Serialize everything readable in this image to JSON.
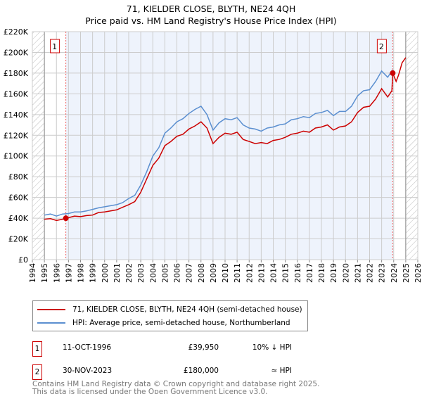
{
  "title_line1": "71, KIELDER CLOSE, BLYTH, NE24 4QH",
  "title_line2": "Price paid vs. HM Land Registry's House Price Index (HPI)",
  "colors": {
    "property": "#cc0000",
    "hpi": "#5b8fd0",
    "band": "#eef3fc",
    "grid": "#cccccc"
  },
  "chart_data": {
    "type": "line",
    "xlim": [
      1994,
      2026
    ],
    "ylim": [
      0,
      220000
    ],
    "yticks": [
      0,
      20000,
      40000,
      60000,
      80000,
      100000,
      120000,
      140000,
      160000,
      180000,
      200000,
      220000
    ],
    "ytick_labels": [
      "£0",
      "£20K",
      "£40K",
      "£60K",
      "£80K",
      "£100K",
      "£120K",
      "£140K",
      "£160K",
      "£180K",
      "£200K",
      "£220K"
    ],
    "xticks": [
      1994,
      1995,
      1996,
      1997,
      1998,
      1999,
      2000,
      2001,
      2002,
      2003,
      2004,
      2005,
      2006,
      2007,
      2008,
      2009,
      2010,
      2011,
      2012,
      2013,
      2014,
      2015,
      2016,
      2017,
      2018,
      2019,
      2020,
      2021,
      2022,
      2023,
      2024,
      2025,
      2026
    ],
    "xtick_labels": [
      "1994",
      "1995",
      "1996",
      "1997",
      "1998",
      "1999",
      "2000",
      "2001",
      "2002",
      "2003",
      "2004",
      "2005",
      "2006",
      "2007",
      "2008",
      "2009",
      "2010",
      "2011",
      "2012",
      "2013",
      "2014",
      "2015",
      "2016",
      "2017",
      "2018",
      "2019",
      "2020",
      "2021",
      "2022",
      "2023",
      "2024",
      "2025",
      "2026"
    ],
    "hatched_ranges": [
      [
        1994,
        1995
      ],
      [
        2025,
        2026
      ]
    ],
    "shaded_range": [
      1996.78,
      2023.92
    ],
    "series": [
      {
        "name": "71, KIELDER CLOSE, BLYTH, NE24 4QH (semi-detached house)",
        "color": "#cc0000",
        "x": [
          1995,
          1995.5,
          1996,
          1996.5,
          1996.78,
          1997,
          1997.5,
          1998,
          1998.5,
          1999,
          1999.5,
          2000,
          2000.5,
          2001,
          2001.5,
          2002,
          2002.5,
          2003,
          2003.5,
          2004,
          2004.5,
          2005,
          2005.5,
          2006,
          2006.5,
          2007,
          2007.5,
          2008,
          2008.5,
          2009,
          2009.5,
          2010,
          2010.5,
          2011,
          2011.5,
          2012,
          2012.5,
          2013,
          2013.5,
          2014,
          2014.5,
          2015,
          2015.5,
          2016,
          2016.5,
          2017,
          2017.5,
          2018,
          2018.5,
          2019,
          2019.5,
          2020,
          2020.5,
          2021,
          2021.5,
          2022,
          2022.5,
          2023,
          2023.5,
          2023.85,
          2023.92,
          2024.2,
          2024.4,
          2024.7,
          2025
        ],
        "y": [
          39000,
          39500,
          37800,
          39000,
          39950,
          40500,
          42000,
          41500,
          42500,
          43000,
          45500,
          46000,
          47000,
          48000,
          50500,
          53000,
          56000,
          65000,
          78000,
          91000,
          98000,
          110000,
          114000,
          119000,
          121000,
          126000,
          129000,
          133000,
          127000,
          112000,
          118000,
          122000,
          121000,
          123000,
          116000,
          114000,
          112000,
          113000,
          112000,
          115000,
          116000,
          118000,
          121000,
          122000,
          124000,
          123000,
          127000,
          128000,
          130000,
          125000,
          128000,
          129000,
          133000,
          142000,
          147000,
          148000,
          155000,
          165000,
          157000,
          163000,
          180000,
          172000,
          178000,
          190000,
          195000
        ]
      },
      {
        "name": "HPI: Average price, semi-detached house, Northumberland",
        "color": "#5b8fd0",
        "x": [
          1995,
          1995.5,
          1996,
          1996.5,
          1997,
          1997.5,
          1998,
          1998.5,
          1999,
          1999.5,
          2000,
          2000.5,
          2001,
          2001.5,
          2002,
          2002.5,
          2003,
          2003.5,
          2004,
          2004.5,
          2005,
          2005.5,
          2006,
          2006.5,
          2007,
          2007.5,
          2008,
          2008.5,
          2009,
          2009.5,
          2010,
          2010.5,
          2011,
          2011.5,
          2012,
          2012.5,
          2013,
          2013.5,
          2014,
          2014.5,
          2015,
          2015.5,
          2016,
          2016.5,
          2017,
          2017.5,
          2018,
          2018.5,
          2019,
          2019.5,
          2020,
          2020.5,
          2021,
          2021.5,
          2022,
          2022.5,
          2023,
          2023.5,
          2023.9
        ],
        "y": [
          43000,
          44000,
          42000,
          44000,
          44500,
          46000,
          46000,
          47000,
          48500,
          50000,
          51000,
          52000,
          53000,
          55000,
          59000,
          62000,
          72000,
          85000,
          100000,
          108000,
          122000,
          127000,
          133000,
          136000,
          141000,
          145000,
          148000,
          140000,
          125000,
          132000,
          136000,
          135000,
          137000,
          130000,
          127000,
          126000,
          124000,
          127000,
          128000,
          130000,
          131000,
          135000,
          136000,
          138000,
          137000,
          141000,
          142000,
          144000,
          139000,
          143000,
          143000,
          148000,
          158000,
          163000,
          164000,
          172000,
          182000,
          176000,
          183000
        ]
      }
    ],
    "sales": [
      {
        "label": "1",
        "x": 1996.78,
        "y": 39950
      },
      {
        "label": "2",
        "x": 2023.92,
        "y": 180000
      }
    ]
  },
  "legend": {
    "property": "71, KIELDER CLOSE, BLYTH, NE24 4QH (semi-detached house)",
    "hpi": "HPI: Average price, semi-detached house, Northumberland"
  },
  "transactions": [
    {
      "num": "1",
      "date": "11-OCT-1996",
      "price": "£39,950",
      "vs_hpi": "10% ↓ HPI"
    },
    {
      "num": "2",
      "date": "30-NOV-2023",
      "price": "£180,000",
      "vs_hpi": "≈ HPI"
    }
  ],
  "footer_line1": "Contains HM Land Registry data © Crown copyright and database right 2025.",
  "footer_line2": "This data is licensed under the Open Government Licence v3.0."
}
